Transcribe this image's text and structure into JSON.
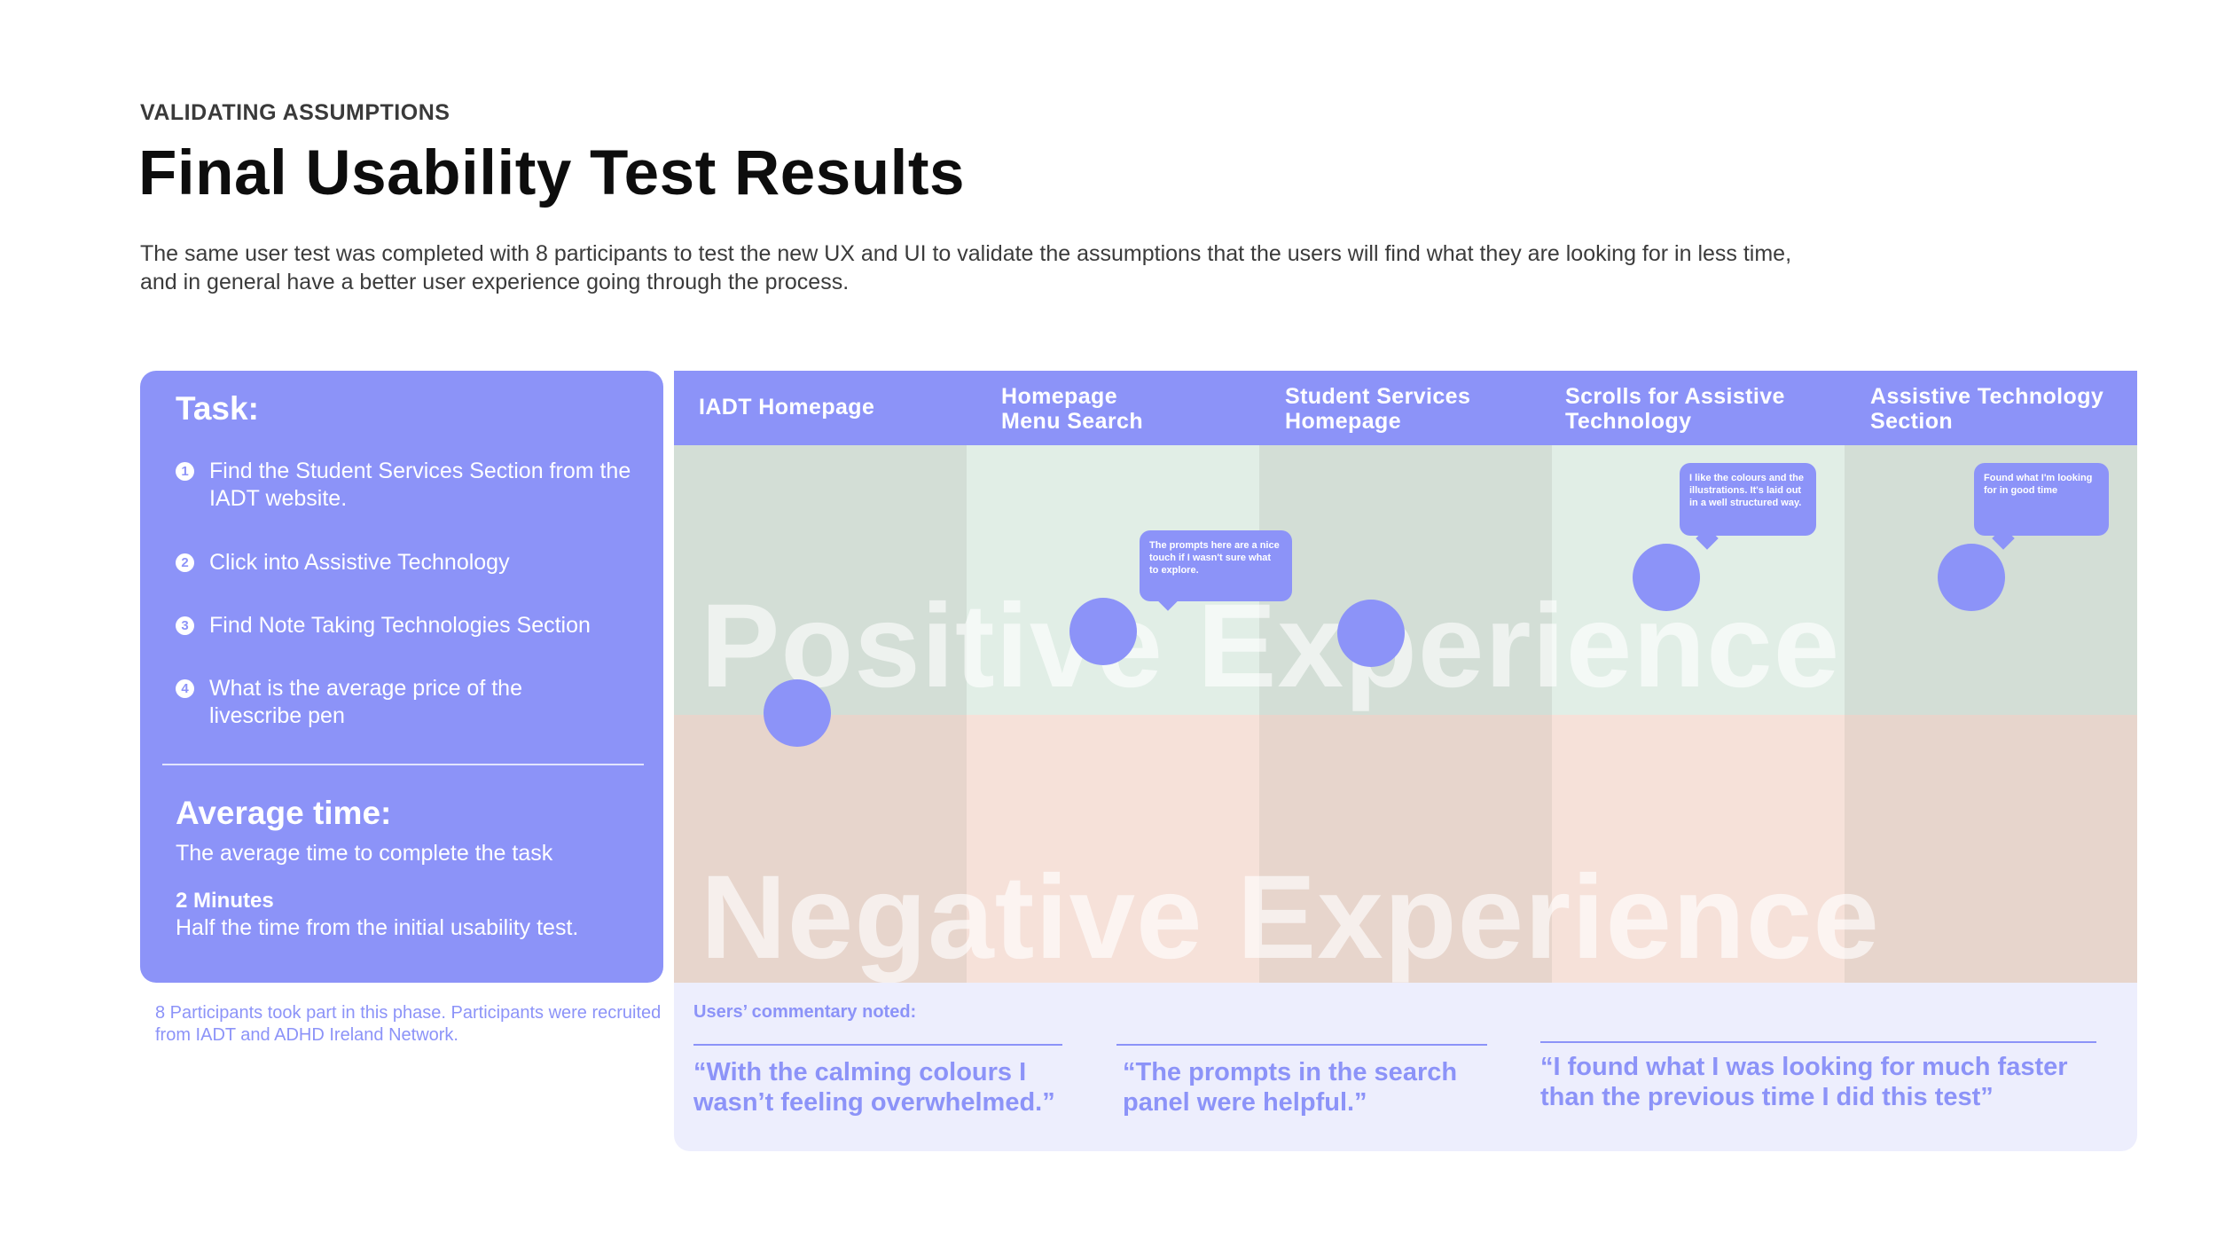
{
  "header": {
    "eyebrow": "VALIDATING ASSUMPTIONS",
    "title": "Final Usability Test Results",
    "intro_line1": "The same user test was completed with 8 participants to test the new UX and UI to validate the assumptions that the users will find what they are looking for in less time,",
    "intro_line2": "and in general have a better user experience going through the process."
  },
  "task": {
    "heading": "Task:",
    "items": [
      {
        "number": "1",
        "text": "Find the Student Services Section from the IADT website."
      },
      {
        "number": "2",
        "text": "Click into Assistive Technology"
      },
      {
        "number": "3",
        "text": "Find Note Taking Technologies Section"
      },
      {
        "number": "4",
        "text": "What is the average price of the livescribe pen"
      }
    ],
    "avg_heading": "Average time:",
    "avg_sub": "The average time to complete the task",
    "avg_value": "2 Minutes",
    "avg_note": "Half the time from the initial usability test."
  },
  "participants_note": "8 Participants took part in this phase. Participants were recruited from IADT and ADHD Ireland Network.",
  "journey": {
    "stages": [
      {
        "line1": "IADT Homepage",
        "line2": ""
      },
      {
        "line1": "Homepage",
        "line2": "Menu Search"
      },
      {
        "line1": "Student Services",
        "line2": "Homepage"
      },
      {
        "line1": "Scrolls for Assistive",
        "line2": "Technology"
      },
      {
        "line1": "Assistive Technology",
        "line2": "Section"
      }
    ],
    "positive_label": "Positive Experience",
    "negative_label": "Negative Experience",
    "bubbles": [
      "The prompts here are a nice touch if I wasn't sure what to explore.",
      "I like the colours and the illustrations. It's laid out in a well structured way.",
      "Found what I'm looking for in good time"
    ]
  },
  "commentary": {
    "label": "Users’ commentary noted:",
    "quotes": [
      {
        "line1": "“With the calming colours I",
        "line2": "wasn’t feeling overwhelmed.”"
      },
      {
        "line1": "“The prompts in the search",
        "line2": "panel were helpful.”"
      },
      {
        "line1": "“I found what I was looking for much faster",
        "line2": "than the previous time I did this test”"
      }
    ]
  },
  "colors": {
    "accent": "#8c93f8",
    "positive_dark": "#d3ded6",
    "positive_light": "#e1eee6",
    "negative_dark": "#e7d5cc",
    "negative_light": "#f6e1d9",
    "commentary_bg": "#edeefd"
  }
}
